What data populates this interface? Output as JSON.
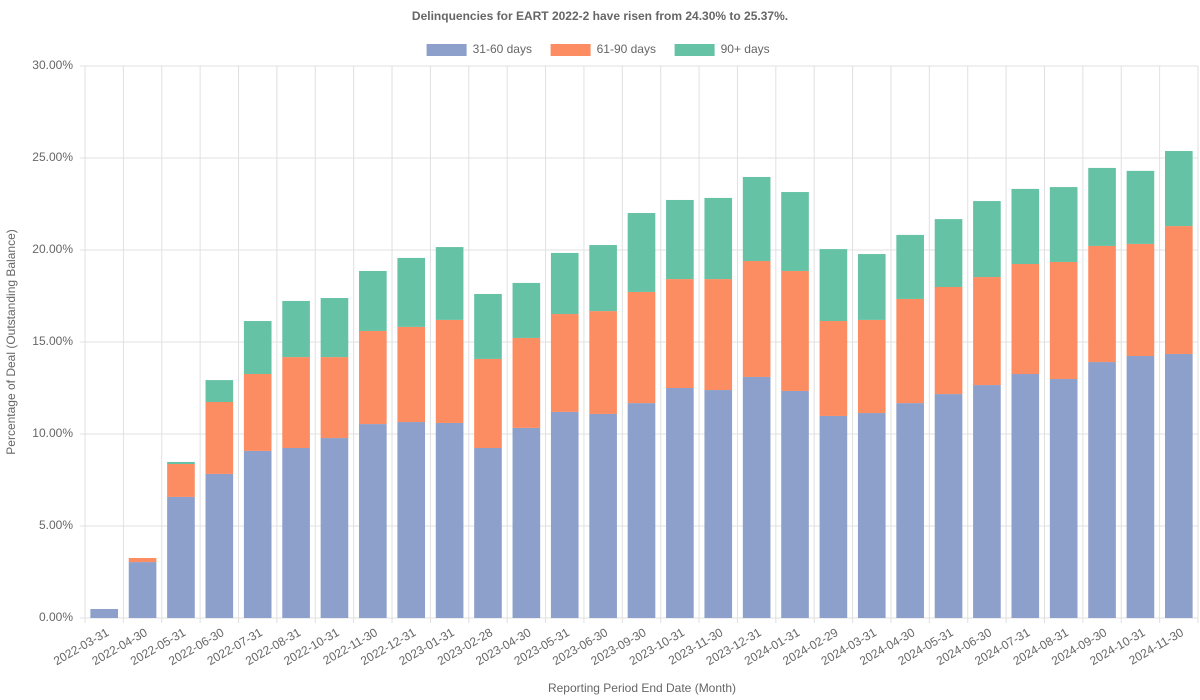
{
  "chart_data": {
    "type": "stacked_bar",
    "title": "Delinquencies for EART 2022-2 have risen from 24.30% to 25.37%.",
    "x_label": "Reporting Period End Date (Month)",
    "y_label": "Percentage of Deal (Outstanding Balance)",
    "categories": [
      "2022-03-31",
      "2022-04-30",
      "2022-05-31",
      "2022-06-30",
      "2022-07-31",
      "2022-08-31",
      "2022-10-31",
      "2022-11-30",
      "2022-12-31",
      "2023-01-31",
      "2023-02-28",
      "2023-04-30",
      "2023-05-31",
      "2023-06-30",
      "2023-09-30",
      "2023-10-31",
      "2023-11-30",
      "2023-12-31",
      "2024-01-31",
      "2024-02-29",
      "2024-03-31",
      "2024-04-30",
      "2024-05-31",
      "2024-06-30",
      "2024-07-31",
      "2024-08-31",
      "2024-09-30",
      "2024-10-31",
      "2024-11-30"
    ],
    "series": [
      {
        "name": "31-60 days",
        "color": "#8da0cb",
        "values": [
          0.49,
          3.04,
          6.58,
          7.83,
          9.08,
          9.24,
          9.78,
          10.54,
          10.65,
          10.6,
          9.24,
          10.33,
          11.2,
          11.09,
          11.68,
          12.5,
          12.39,
          13.1,
          12.34,
          10.98,
          11.14,
          11.68,
          12.17,
          12.66,
          13.26,
          12.99,
          13.91,
          14.24,
          14.35
        ]
      },
      {
        "name": "61-90 days",
        "color": "#fc8d62",
        "values": [
          0,
          0.22,
          1.79,
          3.91,
          4.18,
          4.94,
          4.4,
          5.06,
          5.17,
          5.6,
          4.84,
          4.89,
          5.32,
          5.59,
          6.04,
          5.92,
          6.03,
          6.3,
          6.52,
          5.16,
          5.06,
          5.66,
          5.82,
          5.87,
          5.98,
          6.36,
          6.31,
          6.09,
          6.95
        ]
      },
      {
        "name": "90+ days",
        "color": "#66c2a5",
        "values": [
          0,
          0,
          0.11,
          1.19,
          2.88,
          3.05,
          3.21,
          3.26,
          3.75,
          3.96,
          3.53,
          2.99,
          3.32,
          3.59,
          4.29,
          4.3,
          4.41,
          4.57,
          4.29,
          3.91,
          3.58,
          3.48,
          3.69,
          4.13,
          4.08,
          4.07,
          4.24,
          3.97,
          4.08
        ]
      }
    ],
    "ylim": [
      0,
      30
    ],
    "yticks": [
      {
        "value": 0,
        "label": "0.00%"
      },
      {
        "value": 5,
        "label": "5.00%"
      },
      {
        "value": 10,
        "label": "10.00%"
      },
      {
        "value": 15,
        "label": "15.00%"
      },
      {
        "value": 20,
        "label": "20.00%"
      },
      {
        "value": 25,
        "label": "25.00%"
      },
      {
        "value": 30,
        "label": "30.00%"
      }
    ],
    "grid": true,
    "legend": "top"
  }
}
